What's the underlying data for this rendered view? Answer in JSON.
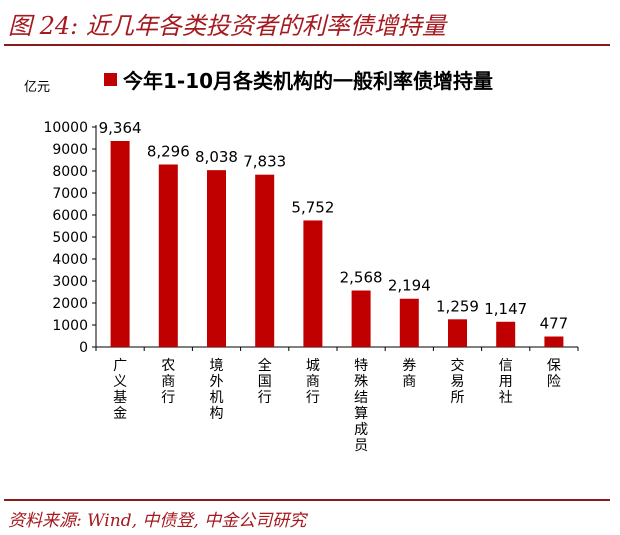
{
  "figure": {
    "title": "图 24: 近几年各类投资者的利率债增持量",
    "source": "资料来源: Wind, 中债登, 中金公司研究"
  },
  "chart_data": {
    "type": "bar",
    "unit_label": "亿元",
    "legend": "今年1-10月各类机构的一般利率债增持量",
    "categories": [
      "广义基金",
      "农商行",
      "境外机构",
      "全国行",
      "城商行",
      "特殊结算成员",
      "券商",
      "交易所",
      "信用社",
      "保险"
    ],
    "series": [
      {
        "name": "今年1-10月各类机构的一般利率债增持量",
        "values": [
          9364,
          8296,
          8038,
          7833,
          5752,
          2568,
          2194,
          1259,
          1147,
          477
        ],
        "data_labels": [
          "9,364",
          "8,296",
          "8,038",
          "7,833",
          "5,752",
          "2,568",
          "2,194",
          "1,259",
          "1,147",
          "477"
        ],
        "color": "#c00000"
      }
    ],
    "yticks": [
      "0",
      "1000",
      "2000",
      "3000",
      "4000",
      "5000",
      "6000",
      "7000",
      "8000",
      "9000",
      "10000"
    ],
    "ylim": [
      0,
      10000
    ],
    "grid": false,
    "legend_position": "top"
  }
}
